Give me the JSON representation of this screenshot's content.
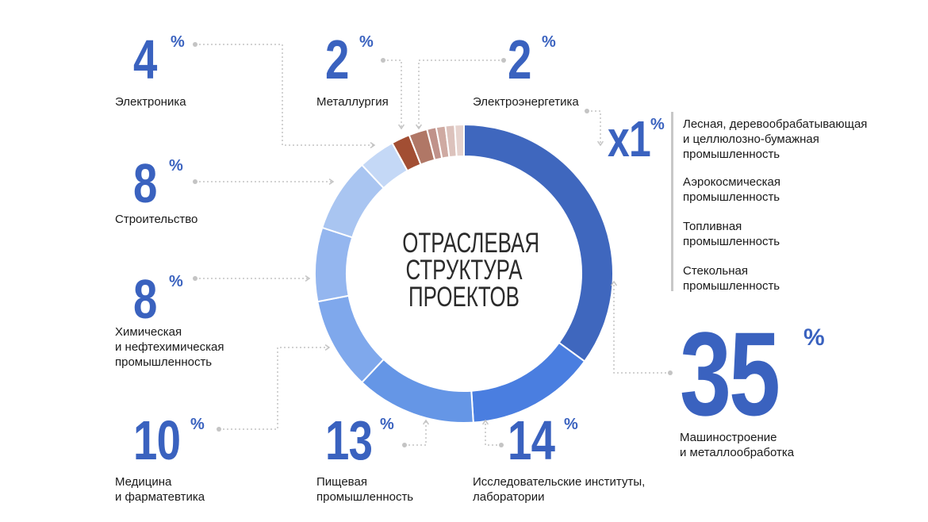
{
  "chart_data": {
    "type": "pie",
    "title": "ОТРАСЛЕВАЯ\nСТРУКТУРА\nПРОЕКТОВ",
    "percent_sign": "%",
    "slices": [
      {
        "name": "Машиностроение\nи металлообработка",
        "value": 35,
        "color": "#3f67be"
      },
      {
        "name": "Исследовательские институты,\nлаборатории",
        "value": 14,
        "color": "#4a7ee0"
      },
      {
        "name": "Пищевая\nпромышленность",
        "value": 13,
        "color": "#6596e6"
      },
      {
        "name": "Медицина\nи фарматевтика",
        "value": 10,
        "color": "#7fa8ec"
      },
      {
        "name": "Химическая\nи нефтехимическая\nпромышленность",
        "value": 8,
        "color": "#94b6ef"
      },
      {
        "name": "Строительство",
        "value": 8,
        "color": "#a9c5f1"
      },
      {
        "name": "Электроника",
        "value": 4,
        "color": "#c4d8f6"
      },
      {
        "name": "Металлургия",
        "value": 2,
        "color": "#a24e33"
      },
      {
        "name": "Электроэнергетика",
        "value": 2,
        "color": "#b07766"
      },
      {
        "name": "Лесная, деревообрабатывающая\nи целлюлозно-бумажная\nпромышленность",
        "value": 1,
        "color": "#c0928a"
      },
      {
        "name": "Аэрокосмическая\nпромышленность",
        "value": 1,
        "color": "#cfaaa2"
      },
      {
        "name": "Топливная\nпромышленность",
        "value": 1,
        "color": "#dcc2bc"
      },
      {
        "name": "Стекольная\nпромышленность",
        "value": 1,
        "color": "#e6d3ce"
      }
    ],
    "small_group_value": "x1"
  }
}
